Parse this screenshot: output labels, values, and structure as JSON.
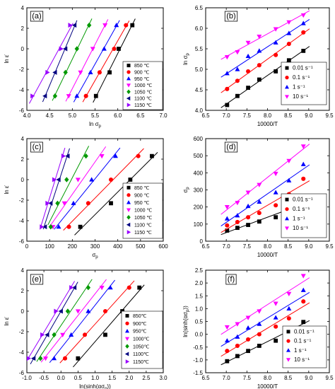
{
  "chart_data": [
    {
      "panel": "(a)",
      "type": "scatter",
      "xlabel": "ln σ",
      "xlabel_sub": "p",
      "ylabel": "ln ε̇",
      "xlim": [
        4.0,
        7.0
      ],
      "ylim": [
        -6,
        4
      ],
      "xticks": [
        4.0,
        4.5,
        5.0,
        5.5,
        6.0,
        6.5,
        7.0
      ],
      "yticks": [
        -6,
        -4,
        -2,
        0,
        2,
        4
      ],
      "x_tick_labels": [
        "4.0",
        "4.5",
        "5.0",
        "5.5",
        "6.0",
        "6.5",
        "7.0"
      ],
      "y_tick_labels": [
        "-6",
        "-4",
        "-2",
        "0",
        "2",
        "4"
      ],
      "y": [
        -4.6,
        -2.3,
        0.0,
        2.3
      ],
      "series": [
        {
          "name": "850 ℃",
          "marker": "square",
          "x": [
            5.52,
            5.82,
            6.02,
            6.32
          ]
        },
        {
          "name": "900 ℃",
          "marker": "circle",
          "x": [
            5.3,
            5.6,
            5.92,
            6.18
          ]
        },
        {
          "name": "950 ℃",
          "marker": "triangle-up",
          "x": [
            5.1,
            5.4,
            5.7,
            5.97
          ]
        },
        {
          "name": "1000 ℃",
          "marker": "triangle-down",
          "x": [
            4.92,
            5.18,
            5.45,
            5.72
          ]
        },
        {
          "name": "1050 ℃",
          "marker": "diamond",
          "x": [
            4.62,
            4.85,
            5.1,
            5.37
          ]
        },
        {
          "name": "1100 ℃",
          "marker": "triangle-left",
          "x": [
            4.4,
            4.62,
            4.85,
            5.05
          ]
        },
        {
          "name": "1150 ℃",
          "marker": "triangle-right",
          "x": [
            4.12,
            4.45,
            4.75,
            4.95
          ]
        }
      ]
    },
    {
      "panel": "(b)",
      "type": "scatter",
      "xlabel": "10000/T",
      "ylabel": "ln σ",
      "ylabel_sub": "p",
      "xlim": [
        6.5,
        9.5
      ],
      "ylim": [
        4.0,
        6.5
      ],
      "xticks": [
        6.5,
        7.0,
        7.5,
        8.0,
        8.5,
        9.0,
        9.5
      ],
      "yticks": [
        4.0,
        4.5,
        5.0,
        5.5,
        6.0,
        6.5
      ],
      "x_tick_labels": [
        "6.5",
        "7.0",
        "7.5",
        "8.0",
        "8.5",
        "9.0",
        "9.5"
      ],
      "y_tick_labels": [
        "4.0",
        "4.5",
        "5.0",
        "5.5",
        "6.0",
        "6.5"
      ],
      "x": [
        7.02,
        7.27,
        7.53,
        7.8,
        8.2,
        8.52,
        8.87
      ],
      "series": [
        {
          "name": "0.01 s⁻¹",
          "marker": "square",
          "y": [
            4.13,
            4.35,
            4.55,
            4.75,
            4.95,
            5.22,
            5.45
          ]
        },
        {
          "name": "0.1 s⁻¹",
          "marker": "circle",
          "y": [
            4.52,
            4.72,
            4.95,
            5.1,
            5.35,
            5.62,
            5.9
          ]
        },
        {
          "name": "1 s⁻¹",
          "marker": "triangle-up",
          "y": [
            4.9,
            5.0,
            5.32,
            5.45,
            5.65,
            5.88,
            6.12
          ]
        },
        {
          "name": "10 s⁻¹",
          "marker": "triangle-down",
          "y": [
            5.3,
            5.42,
            5.65,
            5.8,
            5.98,
            6.15,
            6.32
          ]
        }
      ]
    },
    {
      "panel": "(c)",
      "type": "scatter",
      "xlabel": "σ",
      "xlabel_sub": "p",
      "ylabel": "ln ε̇",
      "xlim": [
        0,
        600
      ],
      "ylim": [
        -6,
        4
      ],
      "xticks": [
        0,
        100,
        200,
        300,
        400,
        500,
        600
      ],
      "yticks": [
        -6,
        -4,
        -2,
        0,
        2,
        4
      ],
      "x_tick_labels": [
        "0",
        "100",
        "200",
        "300",
        "400",
        "500",
        "600"
      ],
      "y_tick_labels": [
        "-6",
        "-4",
        "-2",
        "0",
        "2",
        "4"
      ],
      "y": [
        -4.6,
        -2.3,
        0.0,
        2.3
      ],
      "series": [
        {
          "name": "850 ℃",
          "marker": "square",
          "x": [
            235,
            370,
            455,
            550
          ]
        },
        {
          "name": "900 ℃",
          "marker": "circle",
          "x": [
            185,
            270,
            370,
            490
          ]
        },
        {
          "name": "950 ℃",
          "marker": "triangle-up",
          "x": [
            140,
            205,
            285,
            390
          ]
        },
        {
          "name": "1000 ℃",
          "marker": "triangle-down",
          "x": [
            115,
            165,
            225,
            330
          ]
        },
        {
          "name": "1050 ℃",
          "marker": "diamond",
          "x": [
            105,
            135,
            175,
            260
          ]
        },
        {
          "name": "1100 ℃",
          "marker": "triangle-left",
          "x": [
            80,
            105,
            140,
            180
          ]
        },
        {
          "name": "1150 ℃",
          "marker": "triangle-right",
          "x": [
            65,
            90,
            120,
            160
          ]
        }
      ]
    },
    {
      "panel": "(d)",
      "type": "scatter",
      "xlabel": "10000/T",
      "ylabel": "σ",
      "ylabel_sub": "p",
      "xlim": [
        6.5,
        9.5
      ],
      "ylim": [
        0,
        600
      ],
      "xticks": [
        6.5,
        7.0,
        7.5,
        8.0,
        8.5,
        9.0,
        9.5
      ],
      "yticks": [
        0,
        100,
        200,
        300,
        400,
        500,
        600
      ],
      "x_tick_labels": [
        "6.5",
        "7.0",
        "7.5",
        "8.0",
        "8.5",
        "9.0",
        "9.5"
      ],
      "y_tick_labels": [
        "0",
        "100",
        "200",
        "300",
        "400",
        "500",
        "600"
      ],
      "x": [
        7.02,
        7.27,
        7.53,
        7.8,
        8.2,
        8.52,
        8.87
      ],
      "series": [
        {
          "name": "0.01 s⁻¹",
          "marker": "square",
          "y": [
            62,
            78,
            95,
            115,
            140,
            185,
            235
          ]
        },
        {
          "name": "0.1 s⁻¹",
          "marker": "circle",
          "y": [
            92,
            112,
            140,
            165,
            210,
            275,
            365
          ]
        },
        {
          "name": "1 s⁻¹",
          "marker": "triangle-up",
          "y": [
            132,
            150,
            205,
            230,
            285,
            355,
            450
          ]
        },
        {
          "name": "10 s⁻¹",
          "marker": "triangle-down",
          "y": [
            200,
            225,
            285,
            330,
            395,
            470,
            555
          ]
        }
      ]
    },
    {
      "panel": "(e)",
      "type": "scatter",
      "xlabel": "ln(sinh(ασ",
      "xlabel_sub": "p",
      "xlabel_end": "))",
      "ylabel": "ln ε̇",
      "xlim": [
        -1.0,
        3.0
      ],
      "ylim": [
        -6,
        4
      ],
      "xticks": [
        -1.0,
        -0.5,
        0.0,
        0.5,
        1.0,
        1.5,
        2.0,
        2.5,
        3.0
      ],
      "yticks": [
        -6,
        -4,
        -2,
        0,
        2,
        4
      ],
      "x_tick_labels": [
        "-1.0",
        "-0.5",
        "0.0",
        "0.5",
        "1.0",
        "1.5",
        "2.0",
        "2.5",
        "3.0"
      ],
      "y_tick_labels": [
        "-6",
        "-4",
        "-2",
        "0",
        "2",
        "4"
      ],
      "y": [
        -4.6,
        -2.3,
        0.0,
        2.3
      ],
      "series": [
        {
          "name": "850℃",
          "marker": "square",
          "x": [
            0.5,
            1.3,
            1.8,
            2.3
          ]
        },
        {
          "name": "900℃",
          "marker": "circle",
          "x": [
            0.12,
            0.7,
            1.3,
            2.0
          ]
        },
        {
          "name": "950℃",
          "marker": "triangle-up",
          "x": [
            -0.2,
            0.3,
            0.8,
            1.45
          ]
        },
        {
          "name": "1000℃",
          "marker": "triangle-down",
          "x": [
            -0.45,
            0.05,
            0.5,
            1.2
          ]
        },
        {
          "name": "1050℃",
          "marker": "diamond",
          "x": [
            -0.6,
            -0.2,
            0.2,
            0.8
          ]
        },
        {
          "name": "1100℃",
          "marker": "triangle-left",
          "x": [
            -0.8,
            -0.4,
            0.0,
            0.4
          ]
        },
        {
          "name": "1150℃",
          "marker": "triangle-right",
          "x": [
            -0.95,
            -0.55,
            -0.15,
            0.3
          ]
        }
      ]
    },
    {
      "panel": "(f)",
      "type": "scatter",
      "xlabel": "10000/T",
      "ylabel": "ln(sinh(ασ",
      "ylabel_sub": "p",
      "ylabel_end": "))",
      "xlim": [
        6.5,
        9.5
      ],
      "ylim": [
        -1.5,
        2.5
      ],
      "xticks": [
        6.5,
        7.0,
        7.5,
        8.0,
        8.5,
        9.0,
        9.5
      ],
      "yticks": [
        -1.5,
        -1.0,
        -0.5,
        0.0,
        0.5,
        1.0,
        1.5,
        2.0,
        2.5
      ],
      "x_tick_labels": [
        "6.5",
        "7.0",
        "7.5",
        "8.0",
        "8.5",
        "9.0",
        "9.5"
      ],
      "y_tick_labels": [
        "-1.5",
        "-1.0",
        "-0.5",
        "0.0",
        "0.5",
        "1.0",
        "1.5",
        "2.0",
        "2.5"
      ],
      "x": [
        7.02,
        7.27,
        7.53,
        7.8,
        8.2,
        8.52,
        8.87
      ],
      "series": [
        {
          "name": "0.01 s⁻¹",
          "marker": "square",
          "y": [
            -1.05,
            -0.85,
            -0.65,
            -0.45,
            -0.25,
            0.15,
            0.48
          ]
        },
        {
          "name": "0.1 s⁻¹",
          "marker": "circle",
          "y": [
            -0.65,
            -0.45,
            -0.2,
            0.0,
            0.3,
            0.62,
            1.28
          ]
        },
        {
          "name": "1 s⁻¹",
          "marker": "triangle-up",
          "y": [
            -0.25,
            -0.1,
            0.25,
            0.4,
            0.65,
            1.0,
            1.72
          ]
        },
        {
          "name": "10 s⁻¹",
          "marker": "triangle-down",
          "y": [
            0.28,
            0.4,
            0.65,
            0.9,
            1.2,
            1.58,
            2.28
          ]
        }
      ]
    }
  ],
  "temp_colors": [
    "#000000",
    "#ff0000",
    "#0000ff",
    "#ff00ff",
    "#009900",
    "#000080",
    "#9900ff"
  ],
  "rate_colors": [
    "#000000",
    "#ff0000",
    "#0000ff",
    "#ff00ff"
  ]
}
